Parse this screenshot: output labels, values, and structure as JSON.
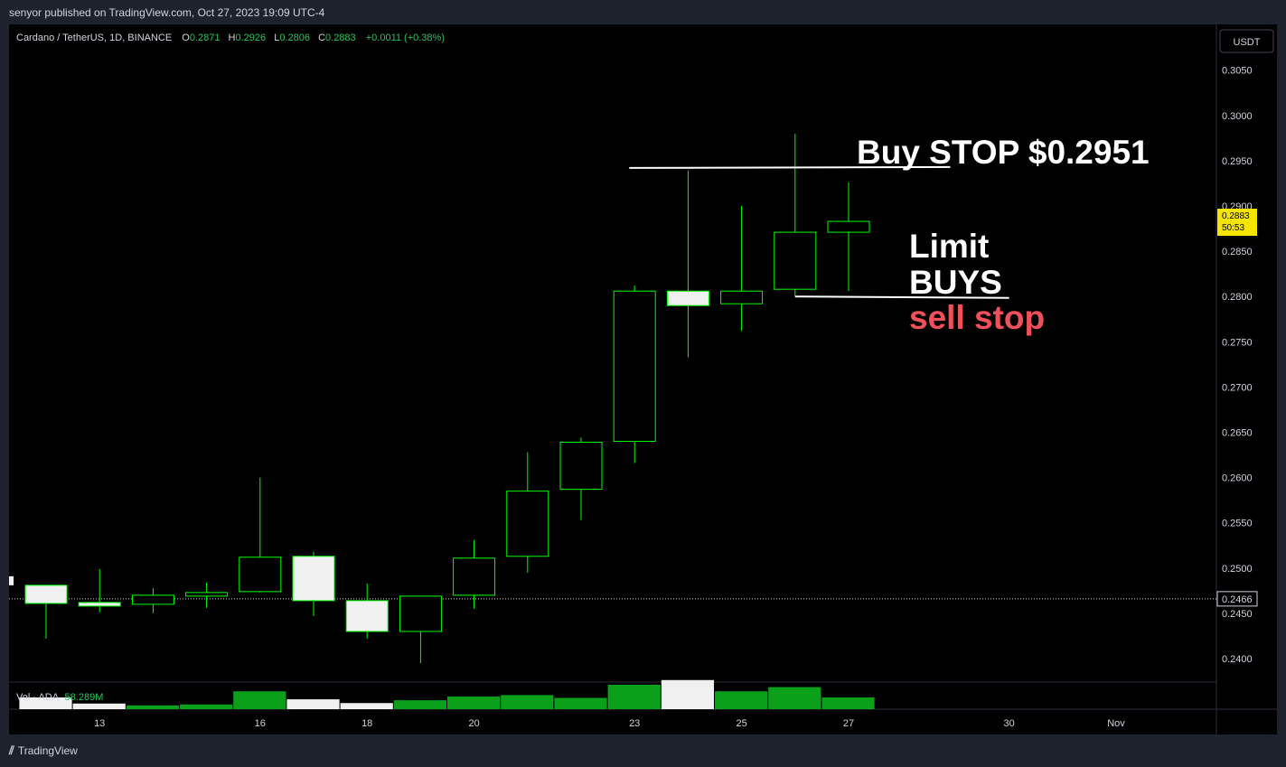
{
  "credit": "senyor published on TradingView.com, Oct 27, 2023 19:09 UTC-4",
  "header": {
    "symbol": "Cardano / TetherUS, 1D, BINANCE",
    "o_label": "O",
    "o": "0.2871",
    "h_label": "H",
    "h": "0.2926",
    "l_label": "L",
    "l": "0.2806",
    "c_label": "C",
    "c": "0.2883",
    "change": "+0.0011 (+0.38%)"
  },
  "currency_button": "USDT",
  "price_badge": {
    "price": "0.2883",
    "countdown": "50:53"
  },
  "ref_line": {
    "value": 0.2466,
    "label": "0.2466"
  },
  "volume": {
    "label": "Vol · ADA",
    "value": "58.289M"
  },
  "annotations": {
    "buy_stop": "Buy STOP $0.2951",
    "limit_line1": "Limit",
    "limit_line2": "BUYS",
    "sell_stop": "sell stop"
  },
  "footer": {
    "brand": "TradingView"
  },
  "colors": {
    "up": "#00ff00",
    "white_candle": "#f0f0f0",
    "vol_green": "#0aa01a",
    "vol_white": "#f0f0f0",
    "badge": "#f5e400",
    "sell_stop": "#f0505a",
    "annotation": "#ffffff",
    "header_value": "#22c55e"
  },
  "chart_data": {
    "type": "candlestick",
    "title": "Cardano / TetherUS, 1D, BINANCE",
    "y_range": [
      0.2375,
      0.3075
    ],
    "y_ticks": [
      "0.3050",
      "0.3000",
      "0.2950",
      "0.2900",
      "0.2850",
      "0.2800",
      "0.2750",
      "0.2700",
      "0.2650",
      "0.2600",
      "0.2550",
      "0.2500",
      "0.2450",
      "0.2400"
    ],
    "x_ticks": [
      "13",
      "16",
      "18",
      "20",
      "23",
      "25",
      "27",
      "30",
      "Nov"
    ],
    "x_tick_days": [
      13,
      16,
      18,
      20,
      23,
      25,
      27,
      30,
      32
    ],
    "candles": [
      {
        "day": 12,
        "o": 0.2461,
        "h": 0.2481,
        "l": 0.2422,
        "c": 0.2481,
        "style": "white"
      },
      {
        "day": 13,
        "o": 0.2458,
        "h": 0.2499,
        "l": 0.2451,
        "c": 0.2462,
        "style": "white"
      },
      {
        "day": 14,
        "o": 0.246,
        "h": 0.2478,
        "l": 0.245,
        "c": 0.247,
        "style": "green"
      },
      {
        "day": 15,
        "o": 0.2469,
        "h": 0.2484,
        "l": 0.2456,
        "c": 0.2473,
        "style": "green"
      },
      {
        "day": 16,
        "o": 0.2474,
        "h": 0.26,
        "l": 0.2473,
        "c": 0.2512,
        "style": "green"
      },
      {
        "day": 17,
        "o": 0.2513,
        "h": 0.2518,
        "l": 0.2447,
        "c": 0.2464,
        "style": "white"
      },
      {
        "day": 18,
        "o": 0.2464,
        "h": 0.2483,
        "l": 0.2422,
        "c": 0.243,
        "style": "white"
      },
      {
        "day": 19,
        "o": 0.243,
        "h": 0.2468,
        "l": 0.2395,
        "c": 0.2469,
        "style": "green"
      },
      {
        "day": 20,
        "o": 0.247,
        "h": 0.2531,
        "l": 0.2455,
        "c": 0.2511,
        "style": "green"
      },
      {
        "day": 21,
        "o": 0.2513,
        "h": 0.2628,
        "l": 0.2495,
        "c": 0.2585,
        "style": "green"
      },
      {
        "day": 22,
        "o": 0.2587,
        "h": 0.2644,
        "l": 0.2553,
        "c": 0.2639,
        "style": "green"
      },
      {
        "day": 23,
        "o": 0.264,
        "h": 0.2812,
        "l": 0.2616,
        "c": 0.2806,
        "style": "green"
      },
      {
        "day": 24,
        "o": 0.2806,
        "h": 0.2939,
        "l": 0.2733,
        "c": 0.279,
        "style": "white"
      },
      {
        "day": 25,
        "o": 0.2792,
        "h": 0.29,
        "l": 0.2762,
        "c": 0.2806,
        "style": "green"
      },
      {
        "day": 26,
        "o": 0.2808,
        "h": 0.298,
        "l": 0.28,
        "c": 0.2871,
        "style": "green"
      },
      {
        "day": 27,
        "o": 0.2871,
        "h": 0.2926,
        "l": 0.2806,
        "c": 0.2883,
        "style": "green"
      }
    ],
    "volume": [
      {
        "day": 12,
        "v": 0.25,
        "style": "white"
      },
      {
        "day": 13,
        "v": 0.12,
        "style": "white"
      },
      {
        "day": 14,
        "v": 0.08,
        "style": "green"
      },
      {
        "day": 15,
        "v": 0.1,
        "style": "green"
      },
      {
        "day": 16,
        "v": 0.38,
        "style": "green"
      },
      {
        "day": 17,
        "v": 0.21,
        "style": "white"
      },
      {
        "day": 18,
        "v": 0.13,
        "style": "white"
      },
      {
        "day": 19,
        "v": 0.19,
        "style": "green"
      },
      {
        "day": 20,
        "v": 0.27,
        "style": "green"
      },
      {
        "day": 21,
        "v": 0.3,
        "style": "green"
      },
      {
        "day": 22,
        "v": 0.24,
        "style": "green"
      },
      {
        "day": 23,
        "v": 0.52,
        "style": "green"
      },
      {
        "day": 24,
        "v": 0.62,
        "style": "white"
      },
      {
        "day": 25,
        "v": 0.38,
        "style": "green"
      },
      {
        "day": 26,
        "v": 0.47,
        "style": "green"
      },
      {
        "day": 27,
        "v": 0.25,
        "style": "green"
      }
    ],
    "drawings": [
      {
        "kind": "line",
        "from": {
          "day": 22.9,
          "price": 0.2942
        },
        "to": {
          "day": 28.9,
          "price": 0.2943
        }
      },
      {
        "kind": "line",
        "from": {
          "day": 26,
          "price": 0.28
        },
        "to": {
          "day": 30,
          "price": 0.27985
        }
      }
    ]
  }
}
